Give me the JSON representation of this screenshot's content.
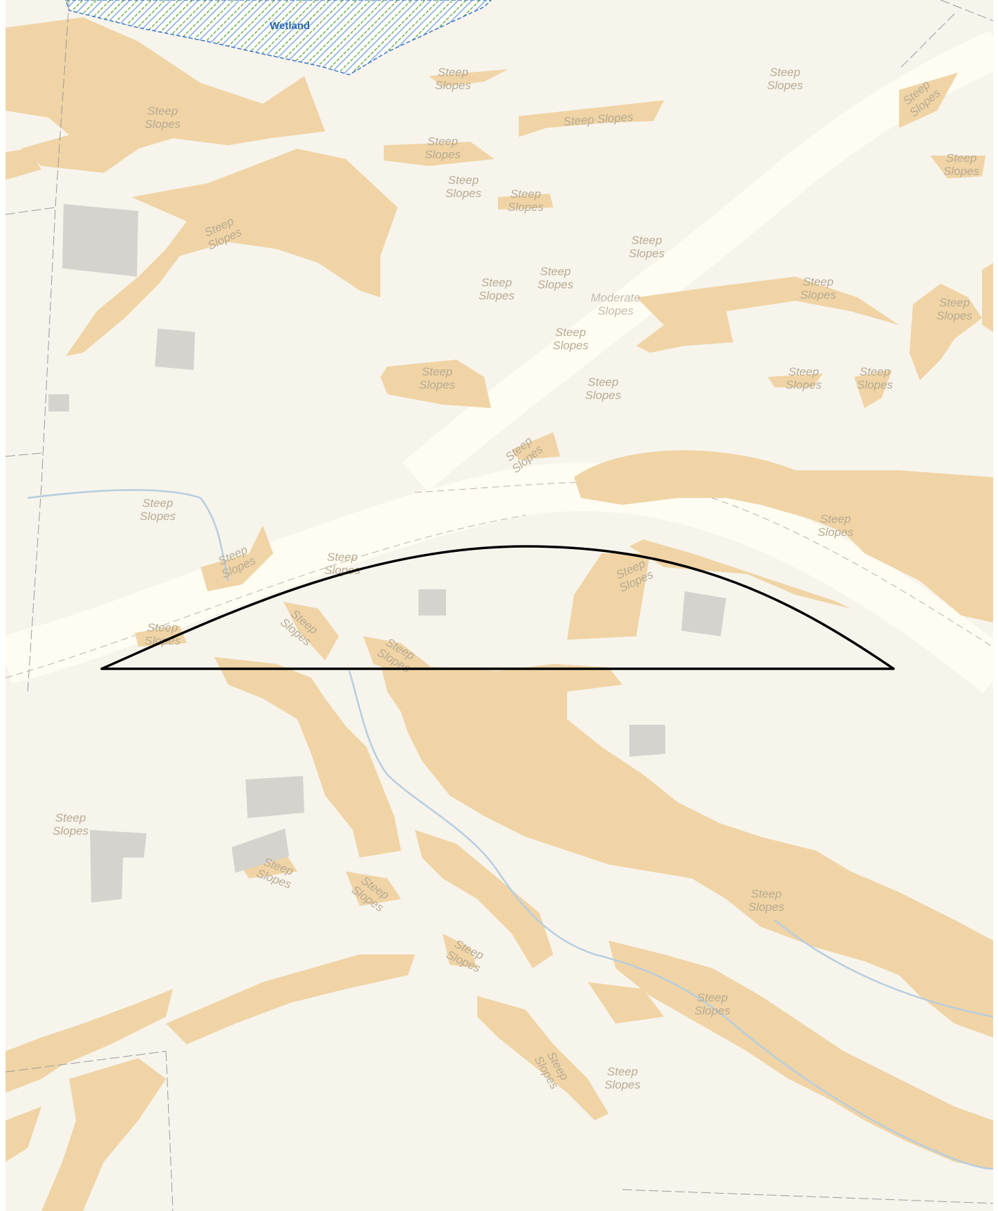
{
  "map": {
    "colors": {
      "background": "#f7f4ec",
      "slope_fill": "#f0d4a5",
      "building": "#d6d3cf",
      "road": "#fffdf2",
      "stream": "#b6cde0",
      "wetland_hatch": "#6fae4a",
      "wetland_edge": "#3b74c6",
      "parcel_line": "#9a9a9a",
      "outline": "#000000"
    },
    "wetland": {
      "label": "Wetland"
    },
    "slope_labels": [
      {
        "id": "ss-01",
        "text": "Steep\nSlopes"
      },
      {
        "id": "ss-02",
        "text": "Steep\nSlopes"
      },
      {
        "id": "ss-03",
        "text": "Steep Slopes"
      },
      {
        "id": "ss-04",
        "text": "Steep\nSlopes"
      },
      {
        "id": "ss-05",
        "text": "Steep\nSlopes"
      },
      {
        "id": "ss-06",
        "text": "Steep\nSlopes"
      },
      {
        "id": "ss-07",
        "text": "Steep\nSlopes"
      },
      {
        "id": "ss-08",
        "text": "Steep\nSlopes"
      },
      {
        "id": "ss-09",
        "text": "Steep\nSlopes"
      },
      {
        "id": "ss-10",
        "text": "Steep\nSlopes"
      },
      {
        "id": "ss-11",
        "text": "Steep\nSlopes"
      },
      {
        "id": "ss-12",
        "text": "Steep\nSlopes"
      },
      {
        "id": "ss-13",
        "text": "Steep\nSlopes"
      },
      {
        "id": "ss-14",
        "text": "Moderate\nSlopes"
      },
      {
        "id": "ss-15",
        "text": "Steep\nSlopes"
      },
      {
        "id": "ss-16",
        "text": "Steep\nSlopes"
      },
      {
        "id": "ss-17",
        "text": "Steep\nSlopes"
      },
      {
        "id": "ss-18",
        "text": "Steep\nSlopes"
      },
      {
        "id": "ss-19",
        "text": "Steep\nSlopes"
      },
      {
        "id": "ss-20",
        "text": "Steep\nSlopes"
      },
      {
        "id": "ss-21",
        "text": "Steep\nSlopes"
      },
      {
        "id": "ss-22",
        "text": "Steep\nSlopes"
      },
      {
        "id": "ss-23",
        "text": "Steep\nSlopes"
      },
      {
        "id": "ss-24",
        "text": "Steep\nSlopes"
      },
      {
        "id": "ss-25",
        "text": "Steep\nSlopes"
      },
      {
        "id": "ss-26",
        "text": "Steep\nSlopes"
      },
      {
        "id": "ss-27",
        "text": "Steep\nSlopes"
      },
      {
        "id": "ss-28",
        "text": "Steep\nSlopes"
      },
      {
        "id": "ss-29",
        "text": "Steep\nSlopes"
      },
      {
        "id": "ss-30",
        "text": "Steep\nSlopes"
      },
      {
        "id": "ss-31",
        "text": "Steep\nSlopes"
      },
      {
        "id": "ss-32",
        "text": "Steep\nSlopes"
      },
      {
        "id": "ss-33",
        "text": "Steep\nSlopes"
      },
      {
        "id": "ss-34",
        "text": "Steep\nSlopes"
      },
      {
        "id": "ss-35",
        "text": "Steep\nSlopes"
      },
      {
        "id": "ss-36",
        "text": "Steep\nSlopes"
      },
      {
        "id": "ss-37",
        "text": "Steep\nSlopes"
      },
      {
        "id": "ss-38",
        "text": "Steep\nSlopes"
      }
    ]
  }
}
